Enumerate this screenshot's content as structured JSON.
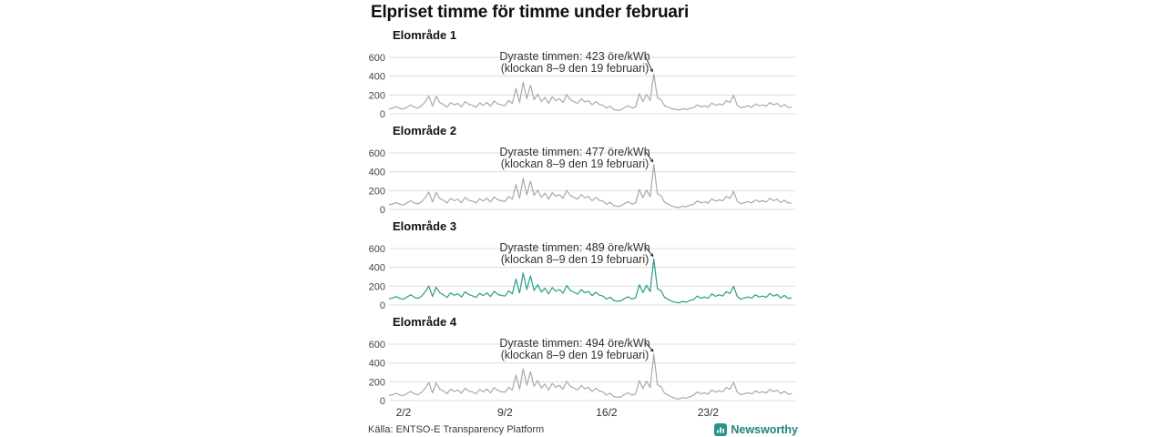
{
  "page": {
    "title": "Elpriset timme för timme under februari"
  },
  "footer": {
    "source": "Källa: ENTSO-E Transparency Platform",
    "brand": "Newsworthy",
    "brand_icon": "bar-chart-logo-icon"
  },
  "colors": {
    "line_gray": "#a9a9a9",
    "line_teal": "#2a9c8c",
    "grid": "#dcdcdc",
    "tick_label": "#444444",
    "annotation_text": "#333333",
    "brand_teal_bg": "#27968b",
    "brand_teal_text": "#1f857c"
  },
  "chart_data": {
    "type": "line",
    "title": "Elpriset timme för timme under februari",
    "xlabel": "",
    "ylabel": "öre/kWh",
    "ylim": [
      0,
      600
    ],
    "yticks": [
      0,
      200,
      400,
      600
    ],
    "grid": "horizontal",
    "legend": "none",
    "x_start_day": 1,
    "x_end_day": 29,
    "points_per_day": 4,
    "xticks": [
      {
        "label": "2/2",
        "day": 2
      },
      {
        "label": "9/2",
        "day": 9
      },
      {
        "label": "16/2",
        "day": 16
      },
      {
        "label": "23/2",
        "day": 23
      }
    ],
    "charts": [
      {
        "title": "Elområde 1",
        "color": "#a9a9a9",
        "peak": {
          "value": 423,
          "day": 19,
          "hour_label": "8–9"
        },
        "annotation_line1": "Dyraste timmen: 423 öre/kWh",
        "annotation_line2": "(klockan 8–9 den 19 februari)",
        "values": [
          52,
          60,
          75,
          58,
          50,
          72,
          95,
          70,
          60,
          85,
          130,
          190,
          80,
          185,
          120,
          100,
          70,
          120,
          95,
          110,
          75,
          130,
          100,
          90,
          70,
          115,
          90,
          120,
          80,
          135,
          105,
          95,
          85,
          140,
          110,
          270,
          120,
          336,
          160,
          304,
          150,
          210,
          130,
          175,
          110,
          180,
          140,
          160,
          120,
          205,
          150,
          130,
          110,
          160,
          125,
          140,
          95,
          130,
          100,
          90,
          60,
          80,
          45,
          38,
          42,
          70,
          85,
          60,
          75,
          213,
          130,
          207,
          140,
          423,
          170,
          150,
          85,
          70,
          55,
          48,
          40,
          55,
          45,
          60,
          65,
          95,
          75,
          85,
          70,
          115,
          90,
          105,
          95,
          140,
          120,
          195,
          90,
          65,
          75,
          85,
          70,
          105,
          85,
          95,
          80,
          120,
          95,
          110,
          75,
          100,
          70,
          72
        ]
      },
      {
        "title": "Elområde 2",
        "color": "#a9a9a9",
        "peak": {
          "value": 477,
          "day": 19,
          "hour_label": "8–9"
        },
        "annotation_line1": "Dyraste timmen: 477 öre/kWh",
        "annotation_line2": "(klockan 8–9 den 19 februari)",
        "values": [
          50,
          58,
          72,
          55,
          48,
          70,
          92,
          68,
          58,
          82,
          125,
          185,
          78,
          180,
          115,
          98,
          68,
          118,
          92,
          108,
          72,
          128,
          98,
          88,
          68,
          112,
          88,
          118,
          78,
          132,
          102,
          92,
          82,
          138,
          108,
          265,
          118,
          330,
          155,
          300,
          148,
          205,
          128,
          172,
          108,
          178,
          138,
          158,
          118,
          200,
          148,
          128,
          108,
          158,
          122,
          138,
          92,
          128,
          98,
          88,
          55,
          75,
          40,
          32,
          38,
          65,
          80,
          55,
          70,
          210,
          125,
          205,
          135,
          477,
          165,
          145,
          75,
          55,
          35,
          25,
          20,
          35,
          28,
          45,
          55,
          90,
          70,
          80,
          68,
          112,
          88,
          102,
          92,
          138,
          118,
          192,
          88,
          60,
          72,
          82,
          68,
          102,
          82,
          92,
          78,
          118,
          92,
          108,
          72,
          98,
          68,
          70
        ]
      },
      {
        "title": "Elområde 3",
        "color": "#2a9c8c",
        "peak": {
          "value": 489,
          "day": 19,
          "hour_label": "8–9"
        },
        "annotation_line1": "Dyraste timmen: 489 öre/kWh",
        "annotation_line2": "(klockan 8–9 den 19 februari)",
        "values": [
          65,
          75,
          90,
          70,
          62,
          85,
          108,
          82,
          70,
          95,
          140,
          200,
          90,
          190,
          130,
          108,
          80,
          130,
          105,
          118,
          85,
          140,
          110,
          98,
          80,
          125,
          100,
          128,
          90,
          145,
          112,
          102,
          95,
          150,
          118,
          275,
          128,
          340,
          165,
          308,
          155,
          215,
          138,
          178,
          118,
          185,
          145,
          165,
          125,
          208,
          155,
          135,
          115,
          165,
          130,
          145,
          100,
          135,
          105,
          95,
          62,
          82,
          48,
          40,
          45,
          72,
          88,
          62,
          78,
          215,
          132,
          210,
          142,
          489,
          172,
          152,
          80,
          60,
          40,
          28,
          22,
          38,
          30,
          48,
          58,
          95,
          72,
          85,
          72,
          118,
          92,
          108,
          95,
          142,
          122,
          198,
          92,
          62,
          75,
          85,
          72,
          108,
          85,
          95,
          82,
          122,
          95,
          112,
          75,
          102,
          72,
          74
        ]
      },
      {
        "title": "Elområde 4",
        "color": "#a9a9a9",
        "peak": {
          "value": 494,
          "day": 19,
          "hour_label": "8–9"
        },
        "annotation_line1": "Dyraste timmen: 494 öre/kWh",
        "annotation_line2": "(klockan 8–9 den 19 februari)",
        "values": [
          55,
          62,
          78,
          60,
          52,
          75,
          98,
          72,
          62,
          88,
          132,
          192,
          82,
          188,
          122,
          102,
          72,
          122,
          96,
          112,
          78,
          132,
          102,
          92,
          72,
          118,
          92,
          122,
          82,
          138,
          106,
          96,
          88,
          142,
          112,
          272,
          122,
          338,
          162,
          306,
          152,
          212,
          132,
          176,
          112,
          182,
          142,
          162,
          122,
          206,
          152,
          132,
          112,
          162,
          126,
          142,
          96,
          132,
          102,
          92,
          58,
          78,
          42,
          35,
          40,
          68,
          82,
          58,
          72,
          212,
          128,
          206,
          138,
          494,
          168,
          148,
          78,
          58,
          38,
          22,
          18,
          32,
          26,
          42,
          58,
          92,
          72,
          82,
          70,
          114,
          90,
          104,
          94,
          140,
          120,
          194,
          90,
          62,
          74,
          84,
          70,
          104,
          84,
          94,
          80,
          120,
          94,
          110,
          74,
          100,
          70,
          72
        ]
      }
    ]
  }
}
